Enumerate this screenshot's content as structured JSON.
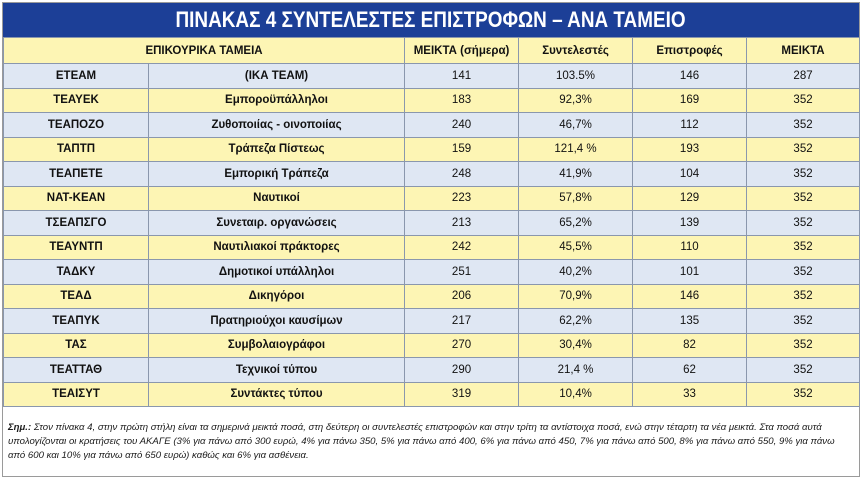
{
  "title": "ΠΙΝΑΚΑΣ 4 ΣΥΝΤΕΛΕΣΤΕΣ ΕΠΙΣΤΡΟΦΩΝ – ΑΝΑ ΤΑΜΕΙΟ",
  "headers": {
    "fund": "ΕΠΙΚΟΥΡΙΚΑ ΤΑΜΕΙΑ",
    "net_today": "ΜΕΙΚΤΑ (σήμερα)",
    "coefficients": "Συντελεστές",
    "returns": "Επιστροφές",
    "net": "ΜΕΙΚΤΑ"
  },
  "rows": [
    {
      "code": "ΕΤΕΑΜ",
      "name": "(ΙΚΑ ΤΕΑΜ)",
      "today": "141",
      "coef": "103.5%",
      "ret": "146",
      "net": "287"
    },
    {
      "code": "ΤΕΑΥΕΚ",
      "name": "Εμποροϋπάλληλοι",
      "today": "183",
      "coef": "92,3%",
      "ret": "169",
      "net": "352"
    },
    {
      "code": "ΤΕΑΠΟΖΟ",
      "name": "Ζυθοποιίας - οινοποιίας",
      "today": "240",
      "coef": "46,7%",
      "ret": "112",
      "net": "352"
    },
    {
      "code": "ΤΑΠΤΠ",
      "name": "Τράπεζα Πίστεως",
      "today": "159",
      "coef": "121,4 %",
      "ret": "193",
      "net": "352"
    },
    {
      "code": "ΤΕΑΠΕΤΕ",
      "name": "Εμπορική Τράπεζα",
      "today": "248",
      "coef": "41,9%",
      "ret": "104",
      "net": "352"
    },
    {
      "code": "ΝΑΤ-ΚΕΑΝ",
      "name": "Ναυτικοί",
      "today": "223",
      "coef": "57,8%",
      "ret": "129",
      "net": "352"
    },
    {
      "code": "ΤΣΕΑΠΣΓΟ",
      "name": "Συνεταιρ. οργανώσεις",
      "today": "213",
      "coef": "65,2%",
      "ret": "139",
      "net": "352"
    },
    {
      "code": "ΤΕΑΥΝΤΠ",
      "name": "Ναυτιλιακοί πράκτορες",
      "today": "242",
      "coef": "45,5%",
      "ret": "110",
      "net": "352"
    },
    {
      "code": "ΤΑΔΚΥ",
      "name": "Δημοτικοί υπάλληλοι",
      "today": "251",
      "coef": "40,2%",
      "ret": "101",
      "net": "352"
    },
    {
      "code": "ΤΕΑΔ",
      "name": "Δικηγόροι",
      "today": "206",
      "coef": "70,9%",
      "ret": "146",
      "net": "352"
    },
    {
      "code": "ΤΕΑΠΥΚ",
      "name": "Πρατηριούχοι καυσίμων",
      "today": "217",
      "coef": "62,2%",
      "ret": "135",
      "net": "352"
    },
    {
      "code": "ΤΑΣ",
      "name": "Συμβολαιογράφοι",
      "today": "270",
      "coef": "30,4%",
      "ret": "82",
      "net": "352"
    },
    {
      "code": "ΤΕΑΤΤΑΘ",
      "name": "Τεχνικοί τύπου",
      "today": "290",
      "coef": "21,4 %",
      "ret": "62",
      "net": "352"
    },
    {
      "code": "ΤΕΑΙΣΥΤ",
      "name": "Συντάκτες τύπου",
      "today": "319",
      "coef": "10,4%",
      "ret": "33",
      "net": "352"
    }
  ],
  "note": {
    "label": "Σημ.:",
    "text": " Στον πίνακα 4, στην πρώτη στήλη είναι τα σημερινά μεικτά ποσά, στη δεύτερη οι συντελεστές επιστροφών και στην τρίτη τα αντίστοιχα ποσά, ενώ στην τέταρτη τα νέα μεικτά. Στα ποσά αυτά υπολογίζονται οι κρατήσεις του ΑΚΑΓΕ (3% για πάνω από 300 ευρώ, 4% για πάνω 350, 5% για πάνω από 400, 6% για πάνω από 450, 7% για πάνω από 500, 8% για πάνω από 550, 9% για πάνω από 600 και 10% για πάνω από 650 ευρώ) καθώς και 6% για ασθένεια."
  },
  "colors": {
    "title_bg": "#1c3f97",
    "header_bg": "#fdf5b4",
    "row_blue": "#dfe7f3",
    "row_yellow": "#fdf5b4"
  }
}
